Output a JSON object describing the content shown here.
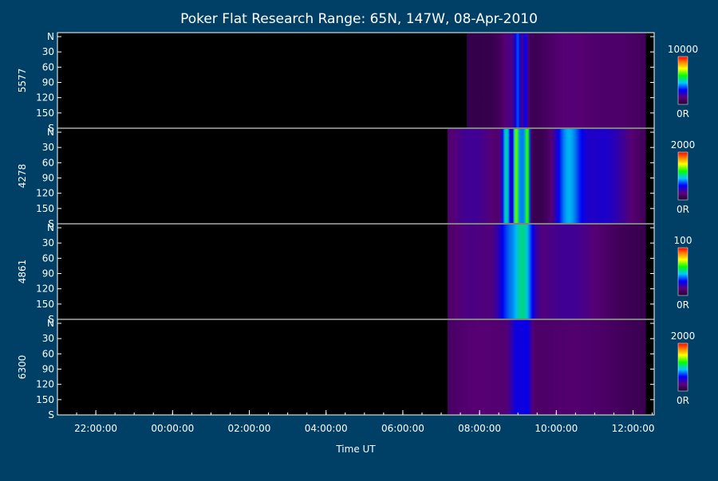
{
  "chart_data": {
    "type": "heatmap",
    "title": "Poker Flat Research Range: 65N, 147W, 08-Apr-2010",
    "xlabel": "Time UT",
    "x_ticks": [
      "22:00:00",
      "00:00:00",
      "02:00:00",
      "04:00:00",
      "06:00:00",
      "08:00:00",
      "10:00:00",
      "12:00:00"
    ],
    "y_ticks": [
      "N",
      "30",
      "60",
      "90",
      "120",
      "150",
      "S"
    ],
    "colormap": [
      "#200030",
      "#5a007a",
      "#0000ff",
      "#00c8ff",
      "#00ff00",
      "#ffff00",
      "#ff8000",
      "#ff0000"
    ],
    "panels": [
      {
        "name": "5577",
        "scale_max": "10000",
        "scale_min": "0R",
        "data_start": "07:40:00",
        "data_end": "12:20:00",
        "bands": [
          {
            "t": 9.0,
            "w": 0.06,
            "lvl": 0.22
          },
          {
            "t": 9.2,
            "w": 0.05,
            "lvl": 0.2
          },
          {
            "t": 8.8,
            "w": 0.2,
            "lvl": 0.1
          },
          {
            "t": 10.3,
            "w": 0.5,
            "lvl": 0.08
          },
          {
            "t": 11.6,
            "w": 0.6,
            "lvl": 0.06
          }
        ]
      },
      {
        "name": "4278",
        "scale_max": "2000",
        "scale_min": "0R",
        "data_start": "07:10:00",
        "data_end": "12:20:00",
        "bands": [
          {
            "t": 8.95,
            "w": 0.05,
            "lvl": 0.52
          },
          {
            "t": 9.25,
            "w": 0.05,
            "lvl": 0.5
          },
          {
            "t": 8.7,
            "w": 0.08,
            "lvl": 0.38
          },
          {
            "t": 9.1,
            "w": 0.08,
            "lvl": 0.3
          },
          {
            "t": 10.3,
            "w": 0.25,
            "lvl": 0.3
          },
          {
            "t": 11.2,
            "w": 0.6,
            "lvl": 0.18
          },
          {
            "t": 7.8,
            "w": 0.6,
            "lvl": 0.12
          }
        ]
      },
      {
        "name": "4861",
        "scale_max": "100",
        "scale_min": "0R",
        "data_start": "07:10:00",
        "data_end": "12:20:00",
        "bands": [
          {
            "t": 9.15,
            "w": 0.18,
            "lvl": 0.35
          },
          {
            "t": 8.75,
            "w": 0.2,
            "lvl": 0.22
          },
          {
            "t": 10.3,
            "w": 0.8,
            "lvl": 0.12
          },
          {
            "t": 7.8,
            "w": 0.6,
            "lvl": 0.1
          }
        ]
      },
      {
        "name": "6300",
        "scale_max": "2000",
        "scale_min": "0R",
        "data_start": "07:10:00",
        "data_end": "12:20:00",
        "bands": [
          {
            "t": 9.0,
            "w": 0.15,
            "lvl": 0.15
          },
          {
            "t": 9.25,
            "w": 0.08,
            "lvl": 0.12
          },
          {
            "t": 8.0,
            "w": 0.8,
            "lvl": 0.08
          },
          {
            "t": 10.5,
            "w": 1.0,
            "lvl": 0.07
          }
        ]
      }
    ]
  }
}
